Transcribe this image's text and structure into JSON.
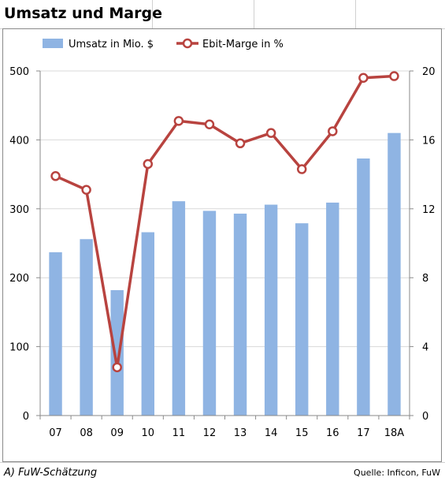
{
  "title": "Umsatz und Marge",
  "footnote": "A) FuW-Schätzung",
  "source": "Quelle: Inficon, FuW",
  "colors": {
    "bar": "#8fb4e3",
    "line": "#b8433f",
    "marker_fill": "#ffffff",
    "grid": "#d9d9d9",
    "axis": "#8a8a8a"
  },
  "chart_data": {
    "type": "bar",
    "categories": [
      "07",
      "08",
      "09",
      "10",
      "11",
      "12",
      "13",
      "14",
      "15",
      "16",
      "17",
      "18A"
    ],
    "series": [
      {
        "name": "Umsatz in Mio. $",
        "type": "bar",
        "axis": "left",
        "values": [
          237,
          256,
          182,
          266,
          311,
          297,
          293,
          306,
          279,
          309,
          373,
          410
        ]
      },
      {
        "name": "Ebit-Marge in %",
        "type": "line",
        "axis": "right",
        "values": [
          13.9,
          13.1,
          2.8,
          14.6,
          17.1,
          16.9,
          15.8,
          16.4,
          14.3,
          16.5,
          19.6,
          19.7
        ]
      }
    ],
    "y_left": {
      "lim": [
        0,
        500
      ],
      "ticks": [
        0,
        100,
        200,
        300,
        400,
        500
      ]
    },
    "y_right": {
      "lim": [
        0,
        20
      ],
      "ticks": [
        0,
        4,
        8,
        12,
        16,
        20
      ]
    },
    "grid": true,
    "legend_position": "top"
  }
}
